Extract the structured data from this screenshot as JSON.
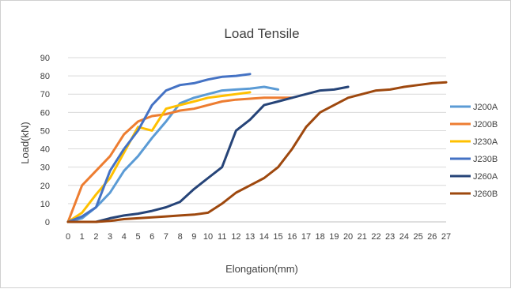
{
  "chart_data": {
    "type": "line",
    "title": "Load Tensile",
    "xlabel": "Elongation(mm)",
    "ylabel": "Load(kN)",
    "x_ticks": [
      "0",
      "1",
      "2",
      "3",
      "4",
      "5",
      "6",
      "7",
      "8",
      "9",
      "10",
      "11",
      "12",
      "13",
      "14",
      "15",
      "16",
      "17",
      "18",
      "19",
      "20",
      "21",
      "22",
      "23",
      "24",
      "25",
      "26",
      "27"
    ],
    "y_ticks": [
      "0",
      "10",
      "20",
      "30",
      "40",
      "50",
      "60",
      "70",
      "80",
      "90"
    ],
    "xlim": [
      0,
      27
    ],
    "ylim": [
      0,
      90
    ],
    "grid": "horizontal",
    "legend_position": "right",
    "series": [
      {
        "name": "J200A",
        "color": "#5b9bd5",
        "points": [
          [
            0,
            0
          ],
          [
            1,
            2
          ],
          [
            2,
            8
          ],
          [
            3,
            16
          ],
          [
            4,
            28
          ],
          [
            5,
            36
          ],
          [
            6,
            46
          ],
          [
            7,
            55
          ],
          [
            8,
            65
          ],
          [
            9,
            68
          ],
          [
            10,
            70
          ],
          [
            11,
            72
          ],
          [
            12,
            72.5
          ],
          [
            13,
            73
          ],
          [
            14,
            74
          ],
          [
            15,
            72.5
          ]
        ]
      },
      {
        "name": "J200B",
        "color": "#ed7d31",
        "points": [
          [
            0,
            0
          ],
          [
            1,
            20
          ],
          [
            2,
            28
          ],
          [
            3,
            36
          ],
          [
            4,
            48
          ],
          [
            5,
            55
          ],
          [
            6,
            58
          ],
          [
            7,
            59
          ],
          [
            8,
            61
          ],
          [
            9,
            62
          ],
          [
            10,
            64
          ],
          [
            11,
            66
          ],
          [
            12,
            67
          ],
          [
            13,
            67.5
          ],
          [
            14,
            68
          ],
          [
            15,
            68
          ],
          [
            16,
            68
          ]
        ]
      },
      {
        "name": "J230A",
        "color": "#ffc000",
        "points": [
          [
            0,
            0
          ],
          [
            1,
            5
          ],
          [
            2,
            15
          ],
          [
            3,
            24
          ],
          [
            4,
            38
          ],
          [
            5,
            52
          ],
          [
            6,
            50
          ],
          [
            7,
            62
          ],
          [
            8,
            64
          ],
          [
            9,
            66
          ],
          [
            10,
            68
          ],
          [
            11,
            69
          ],
          [
            12,
            70
          ],
          [
            13,
            71
          ]
        ]
      },
      {
        "name": "J230B",
        "color": "#4472c4",
        "points": [
          [
            0,
            0
          ],
          [
            1,
            3
          ],
          [
            2,
            8
          ],
          [
            3,
            28
          ],
          [
            4,
            40
          ],
          [
            5,
            50
          ],
          [
            6,
            64
          ],
          [
            7,
            72
          ],
          [
            8,
            75
          ],
          [
            9,
            76
          ],
          [
            10,
            78
          ],
          [
            11,
            79.5
          ],
          [
            12,
            80
          ],
          [
            13,
            81
          ]
        ]
      },
      {
        "name": "J260A",
        "color": "#264478",
        "points": [
          [
            0,
            0
          ],
          [
            1,
            0
          ],
          [
            2,
            0
          ],
          [
            3,
            2
          ],
          [
            4,
            3.5
          ],
          [
            5,
            4.5
          ],
          [
            6,
            6
          ],
          [
            7,
            8
          ],
          [
            8,
            11
          ],
          [
            9,
            18
          ],
          [
            10,
            24
          ],
          [
            11,
            30
          ],
          [
            12,
            50
          ],
          [
            13,
            56
          ],
          [
            14,
            64
          ],
          [
            15,
            66
          ],
          [
            16,
            68
          ],
          [
            17,
            70
          ],
          [
            18,
            72
          ],
          [
            19,
            72.5
          ],
          [
            20,
            74
          ]
        ]
      },
      {
        "name": "J260B",
        "color": "#9e480e",
        "points": [
          [
            0,
            0
          ],
          [
            1,
            0
          ],
          [
            2,
            0
          ],
          [
            3,
            0.5
          ],
          [
            4,
            1.5
          ],
          [
            5,
            2
          ],
          [
            6,
            2.5
          ],
          [
            7,
            3
          ],
          [
            8,
            3.5
          ],
          [
            9,
            4
          ],
          [
            10,
            5
          ],
          [
            11,
            10
          ],
          [
            12,
            16
          ],
          [
            13,
            20
          ],
          [
            14,
            24
          ],
          [
            15,
            30
          ],
          [
            16,
            40
          ],
          [
            17,
            52
          ],
          [
            18,
            60
          ],
          [
            19,
            64
          ],
          [
            20,
            68
          ],
          [
            21,
            70
          ],
          [
            22,
            72
          ],
          [
            23,
            72.5
          ],
          [
            24,
            74
          ],
          [
            25,
            75
          ],
          [
            26,
            76
          ],
          [
            27,
            76.5
          ]
        ]
      }
    ]
  }
}
